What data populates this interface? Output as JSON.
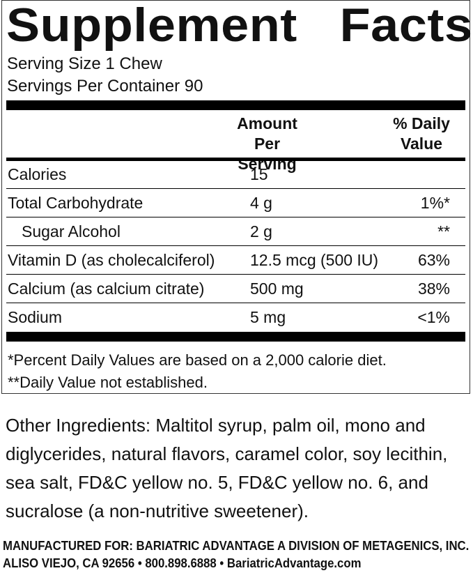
{
  "title": "Supplement Facts",
  "serving_size": "Serving Size 1 Chew",
  "servings_per_container": "Servings Per Container 90",
  "table": {
    "headers": {
      "amount": "Amount Per Serving",
      "daily_value": "% Daily Value"
    },
    "rows": [
      {
        "name": "Calories",
        "amount": "15"
      },
      {
        "name": "Total Carbohydrate",
        "amount": "4 g",
        "daily_value": "1%*"
      },
      {
        "name": "Sugar Alcohol",
        "amount": "2 g",
        "daily_value": "**",
        "indent": true
      },
      {
        "name": "Vitamin D (as cholecalciferol)",
        "amount": "12.5 mcg (500 IU)",
        "daily_value": "63%"
      },
      {
        "name": "Calcium (as calcium citrate)",
        "amount": "500 mg",
        "daily_value": "38%"
      },
      {
        "name": "Sodium",
        "amount": "5 mg",
        "daily_value": "<1%"
      }
    ]
  },
  "footnotes": [
    "*Percent Daily Values are based on a 2,000 calorie diet.",
    "**Daily Value not established."
  ],
  "other_ingredients": "Other Ingredients: Maltitol syrup, palm oil, mono and diglycerides, natural flavors, caramel color, soy lecithin, sea salt, FD&C yellow no. 5, FD&C yellow no. 6, and sucralose (a non-nutritive sweetener).",
  "manufacturer": [
    "MANUFACTURED FOR: BARIATRIC ADVANTAGE A DIVISION OF METAGENICS, INC.",
    "ALISO VIEJO, CA 92656 • 800.898.6888 • BariatricAdvantage.com"
  ]
}
